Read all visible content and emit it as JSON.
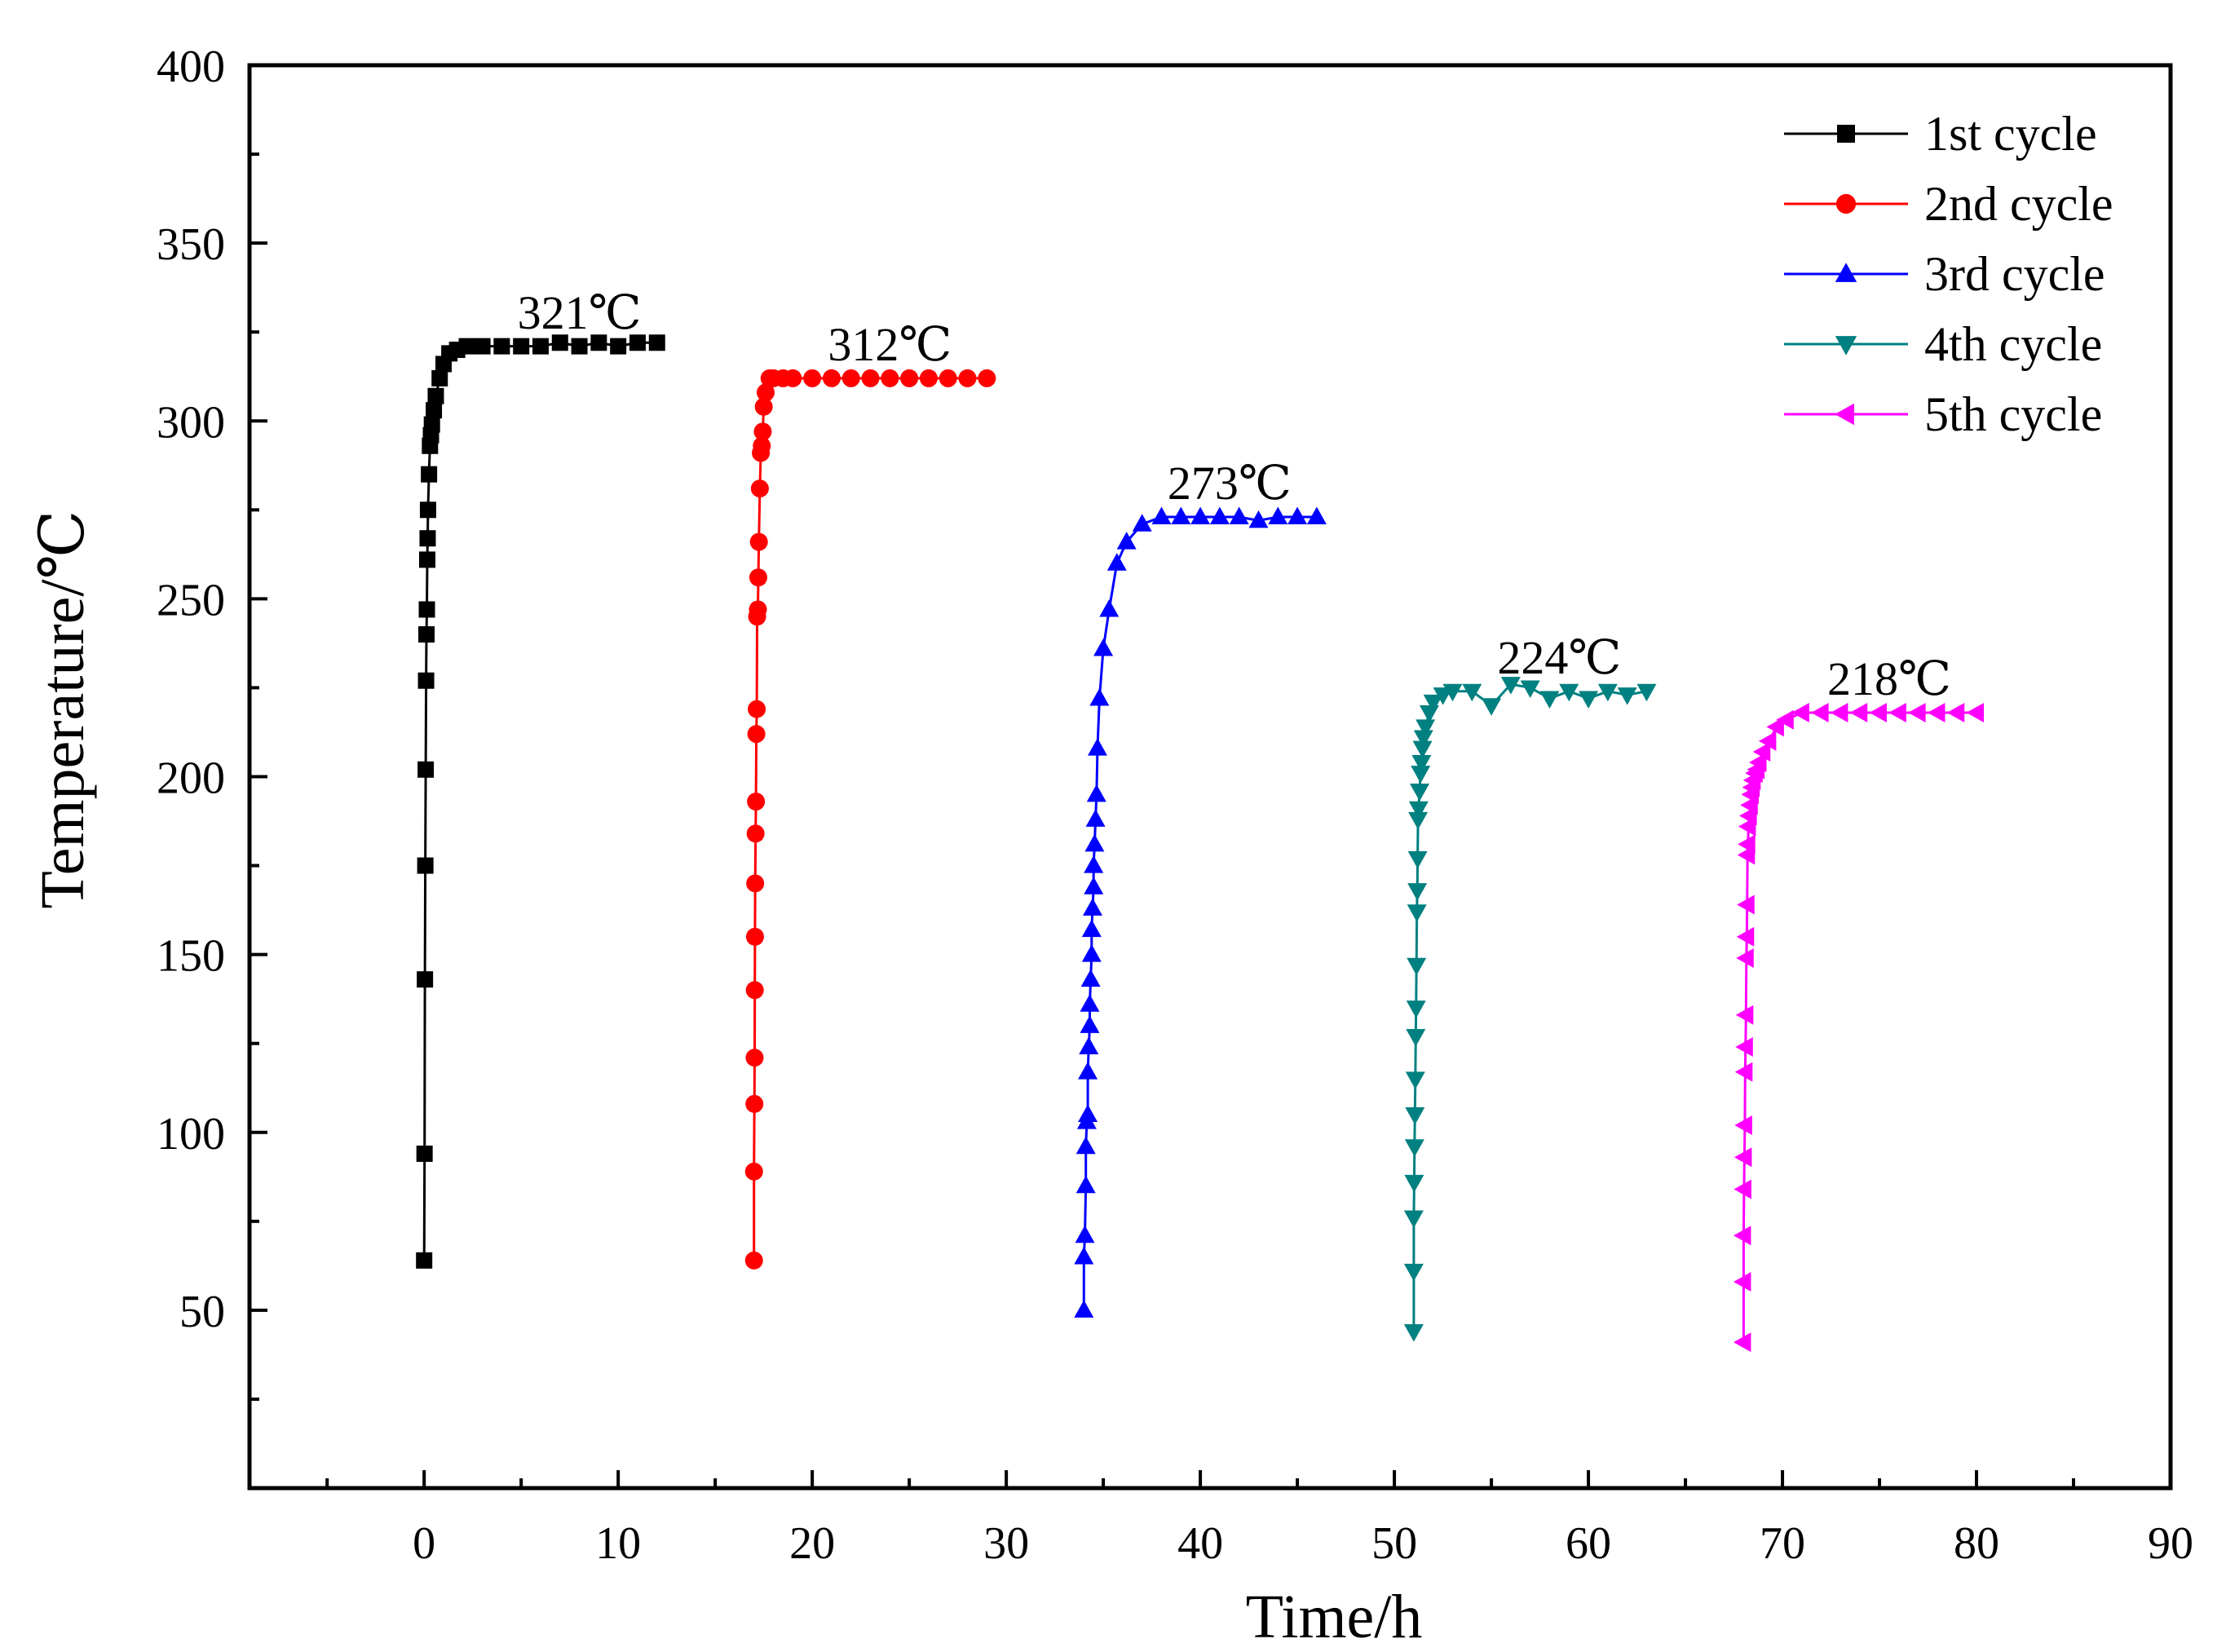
{
  "chart_data": {
    "type": "line",
    "title": "",
    "xlabel": "Time/h",
    "ylabel": "Temperature/℃",
    "xlim": [
      -9,
      90
    ],
    "ylim": [
      0,
      400
    ],
    "xticks": [
      0,
      10,
      20,
      30,
      40,
      50,
      60,
      70,
      80,
      90
    ],
    "yticks": [
      50,
      100,
      150,
      200,
      250,
      300,
      350,
      400
    ],
    "legend_position": "top-right",
    "grid": false,
    "series": [
      {
        "name": "1st cycle",
        "color": "#000000",
        "marker": "square",
        "x": [
          0,
          0.02,
          0.04,
          0.06,
          0.08,
          0.1,
          0.12,
          0.14,
          0.16,
          0.18,
          0.2,
          0.25,
          0.3,
          0.35,
          0.4,
          0.5,
          0.6,
          0.8,
          1.0,
          1.3,
          1.7,
          2.2,
          3,
          4,
          5,
          6,
          7,
          8,
          9,
          10,
          11,
          12
        ],
        "y": [
          64,
          94,
          143,
          175,
          202,
          227,
          240,
          247,
          261,
          267,
          275,
          285,
          293,
          296,
          299,
          303,
          307,
          312,
          316,
          319,
          320,
          321,
          321,
          321,
          321,
          321,
          322,
          321,
          322,
          321,
          322,
          322
        ]
      },
      {
        "name": "2nd cycle",
        "color": "#ff0000",
        "marker": "circle",
        "x": [
          17,
          17,
          17.02,
          17.03,
          17.04,
          17.05,
          17.06,
          17.08,
          17.1,
          17.12,
          17.14,
          17.16,
          17.2,
          17.22,
          17.25,
          17.3,
          17.35,
          17.4,
          17.45,
          17.5,
          17.6,
          17.8,
          18,
          18.5,
          19,
          20,
          21,
          22,
          23,
          24,
          25,
          26,
          27,
          28,
          29
        ],
        "y": [
          64,
          89,
          108,
          121,
          140,
          155,
          170,
          184,
          193,
          212,
          219,
          245,
          247,
          256,
          266,
          281,
          291,
          293,
          297,
          304,
          308,
          312,
          312,
          312,
          312,
          312,
          312,
          312,
          312,
          312,
          312,
          312,
          312,
          312,
          312
        ]
      },
      {
        "name": "3rd cycle",
        "color": "#0000ff",
        "marker": "triangle-up",
        "x": [
          34,
          34,
          34.05,
          34.1,
          34.1,
          34.15,
          34.2,
          34.2,
          34.25,
          34.3,
          34.3,
          34.35,
          34.4,
          34.4,
          34.45,
          34.5,
          34.5,
          34.55,
          34.6,
          34.65,
          34.7,
          34.8,
          35,
          35.3,
          35.7,
          36.2,
          37,
          38,
          39,
          40,
          41,
          42,
          43,
          44,
          45,
          46
        ],
        "y": [
          50,
          65,
          71,
          85,
          96,
          103,
          105,
          117,
          124,
          130,
          136,
          143,
          150,
          157,
          163,
          169,
          175,
          181,
          188,
          195,
          208,
          222,
          236,
          247,
          260,
          266,
          271,
          273,
          273,
          273,
          273,
          273,
          272,
          273,
          273,
          273
        ]
      },
      {
        "name": "4th cycle",
        "color": "#008080",
        "marker": "triangle-down",
        "x": [
          51,
          51,
          51,
          51.02,
          51.04,
          51.06,
          51.08,
          51.1,
          51.12,
          51.14,
          51.16,
          51.18,
          51.2,
          51.22,
          51.25,
          51.3,
          51.35,
          51.4,
          51.45,
          51.5,
          51.6,
          51.8,
          52,
          52.5,
          53,
          54,
          55,
          56,
          57,
          58,
          59,
          60,
          61,
          62,
          63
        ],
        "y": [
          44,
          61,
          76,
          86,
          96,
          105,
          115,
          127,
          135,
          147,
          162,
          168,
          177,
          188,
          191,
          196,
          201,
          204,
          208,
          211,
          214,
          218,
          221,
          223,
          224,
          224,
          220,
          226,
          225,
          222,
          224,
          222,
          224,
          223,
          224
        ]
      },
      {
        "name": "5th cycle",
        "color": "#ff00ff",
        "marker": "triangle-left",
        "x": [
          68,
          68,
          68,
          68.02,
          68.04,
          68.06,
          68.08,
          68.1,
          68.12,
          68.14,
          68.16,
          68.18,
          68.2,
          68.22,
          68.25,
          68.3,
          68.35,
          68.4,
          68.45,
          68.5,
          68.6,
          68.7,
          68.8,
          69,
          69.3,
          69.7,
          70.2,
          71,
          72,
          73,
          74,
          75,
          76,
          77,
          78,
          79,
          80
        ],
        "y": [
          41,
          58,
          71,
          84,
          93,
          102,
          117,
          124,
          133,
          149,
          155,
          164,
          178,
          181,
          186,
          189,
          192,
          195,
          197,
          199,
          201,
          202,
          204,
          207,
          210,
          214,
          216,
          218,
          218,
          218,
          218,
          218,
          218,
          218,
          218,
          218,
          218
        ]
      }
    ],
    "annotations": [
      {
        "text": "321℃",
        "x": 8,
        "y": 326
      },
      {
        "text": "312℃",
        "x": 24,
        "y": 317
      },
      {
        "text": "273℃",
        "x": 41.5,
        "y": 278
      },
      {
        "text": "224℃",
        "x": 58.5,
        "y": 229
      },
      {
        "text": "218℃",
        "x": 75.5,
        "y": 223
      }
    ]
  }
}
